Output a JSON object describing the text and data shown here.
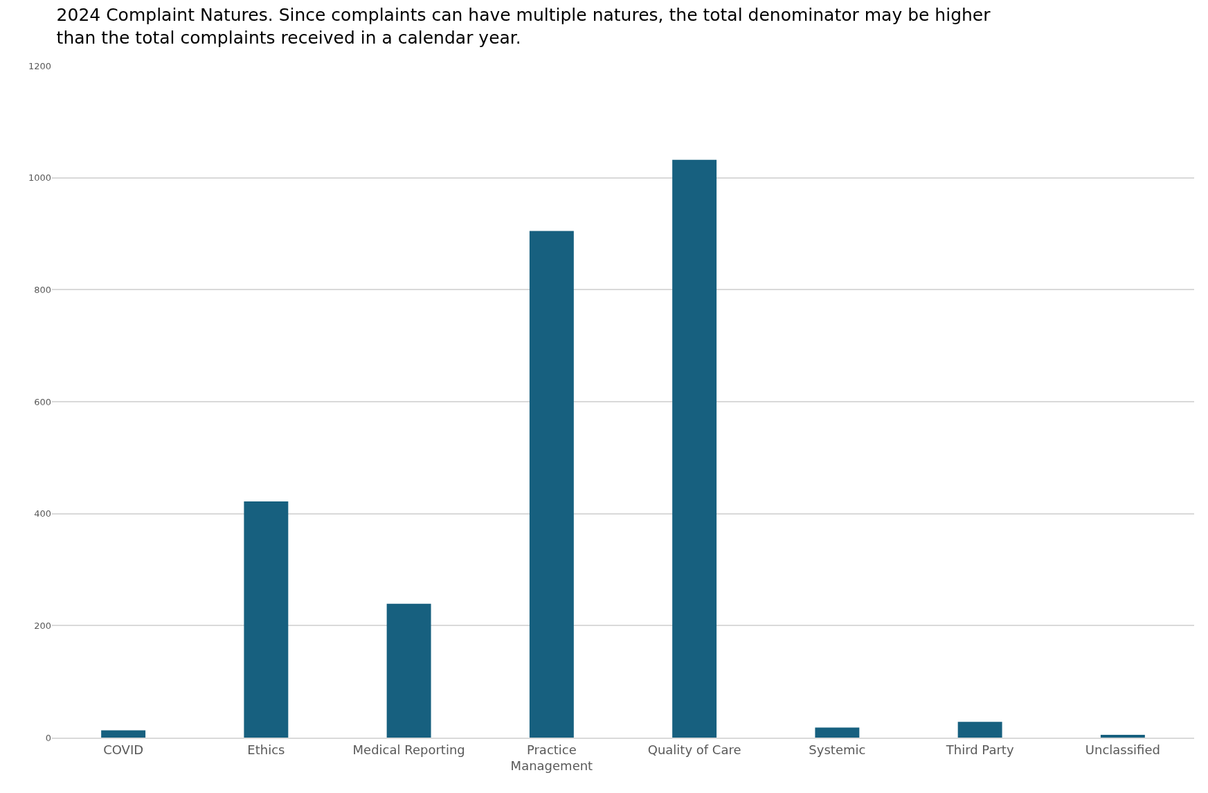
{
  "chart_data": {
    "type": "bar",
    "title": "2024 Complaint Natures. Since complaints can have multiple natures, the total denominator may be higher than the total complaints received in a calendar year.",
    "categories": [
      "COVID",
      "Ethics",
      "Medical Reporting",
      "Practice Management",
      "Quality of Care",
      "Systemic",
      "Third Party",
      "Unclassified"
    ],
    "values": [
      13,
      422,
      239,
      905,
      1032,
      18,
      28,
      5
    ],
    "color": "#17607f",
    "ylim": [
      0,
      1200
    ],
    "yticks": [
      0,
      200,
      400,
      600,
      800,
      1000,
      1200
    ],
    "grid": "y"
  }
}
